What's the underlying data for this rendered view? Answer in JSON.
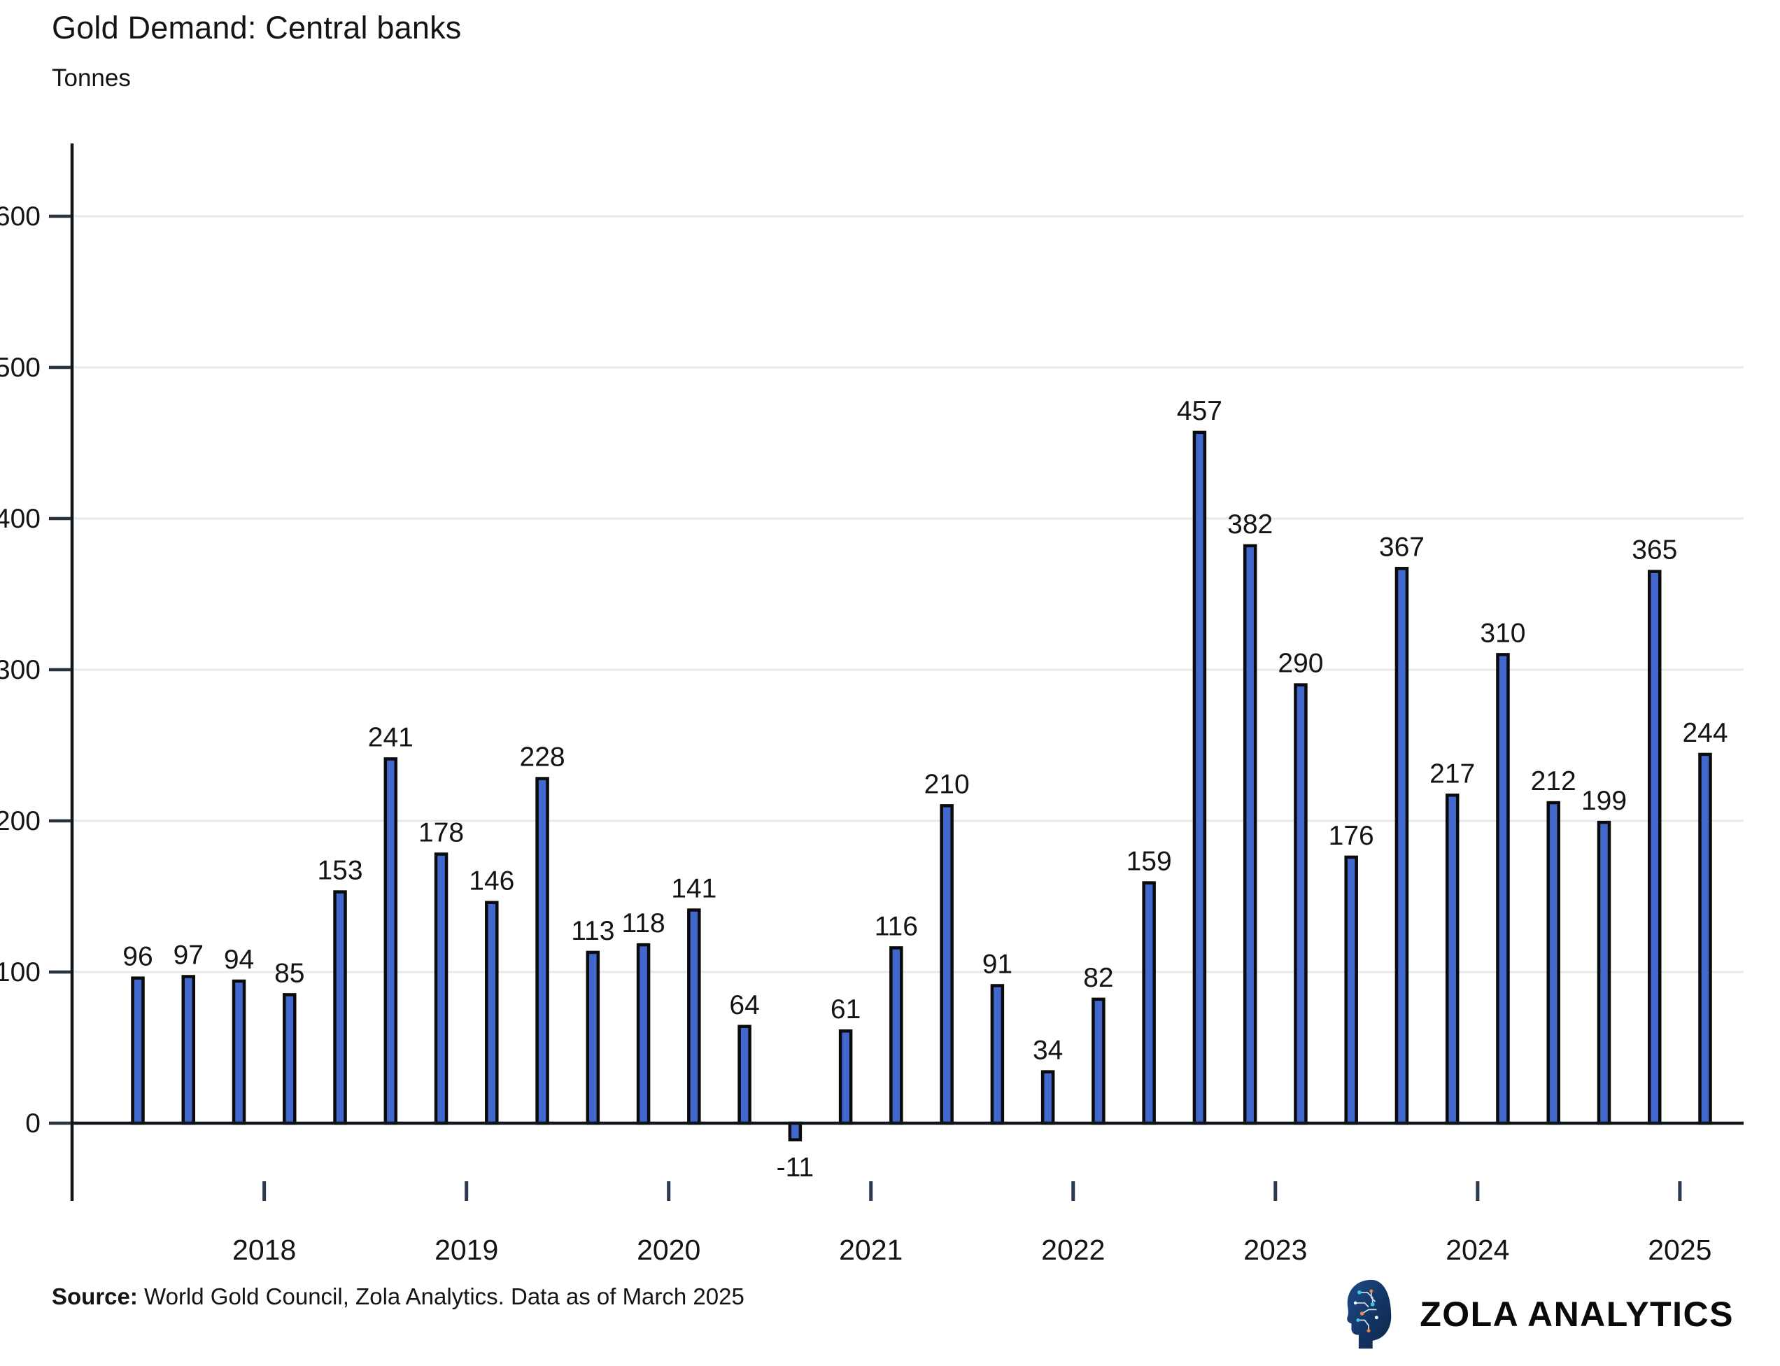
{
  "title": "Gold Demand: Central banks",
  "subtitle": "Tonnes",
  "source": {
    "label": "Source:",
    "text": " World Gold Council, Zola Analytics. Data as of March 2025"
  },
  "branding": {
    "name": "ZOLA ANALYTICS",
    "logo": "zola-head-logo",
    "logo_colors": {
      "head_dark": "#0c2547",
      "head_light": "#1d4a8a",
      "trace": "#e8f2f8",
      "node_cyan": "#3fc6e8",
      "node_orange": "#e8874f"
    }
  },
  "chart_data": {
    "type": "bar",
    "title": "Gold Demand: Central banks",
    "ylabel": "Tonnes",
    "unit": "tonnes",
    "values": [
      96,
      97,
      94,
      85,
      153,
      241,
      178,
      146,
      228,
      113,
      118,
      141,
      64,
      -11,
      61,
      116,
      210,
      91,
      34,
      82,
      159,
      457,
      382,
      290,
      176,
      367,
      217,
      310,
      212,
      199,
      365,
      244
    ],
    "bar_labels": [
      "96",
      "97",
      "94",
      "85",
      "153",
      "241",
      "178",
      "146",
      "228",
      "113",
      "118",
      "141",
      "64",
      "-11",
      "61",
      "116",
      "210",
      "91",
      "34",
      "82",
      "159",
      "457",
      "382",
      "290",
      "176",
      "367",
      "217",
      "310",
      "212",
      "199",
      "365",
      "244"
    ],
    "year_ticks": [
      {
        "label": "2018",
        "between": [
          2,
          3
        ]
      },
      {
        "label": "2019",
        "between": [
          6,
          7
        ]
      },
      {
        "label": "2020",
        "between": [
          10,
          11
        ]
      },
      {
        "label": "2021",
        "between": [
          14,
          15
        ]
      },
      {
        "label": "2022",
        "between": [
          18,
          19
        ]
      },
      {
        "label": "2023",
        "between": [
          22,
          23
        ]
      },
      {
        "label": "2024",
        "between": [
          26,
          27
        ]
      },
      {
        "label": "2025",
        "between": [
          30,
          31
        ]
      }
    ],
    "yticks": [
      0,
      100,
      200,
      300,
      400,
      500,
      600
    ],
    "ylim": [
      -65,
      655
    ],
    "grid": true,
    "legend": false,
    "colors": {
      "bar_fill": "#4268CE",
      "bar_stroke": "#0b0b0b",
      "grid": "#e8e9ea",
      "axis": "#10151c",
      "year_tick": "#2c3a50",
      "text": "#141414"
    }
  }
}
